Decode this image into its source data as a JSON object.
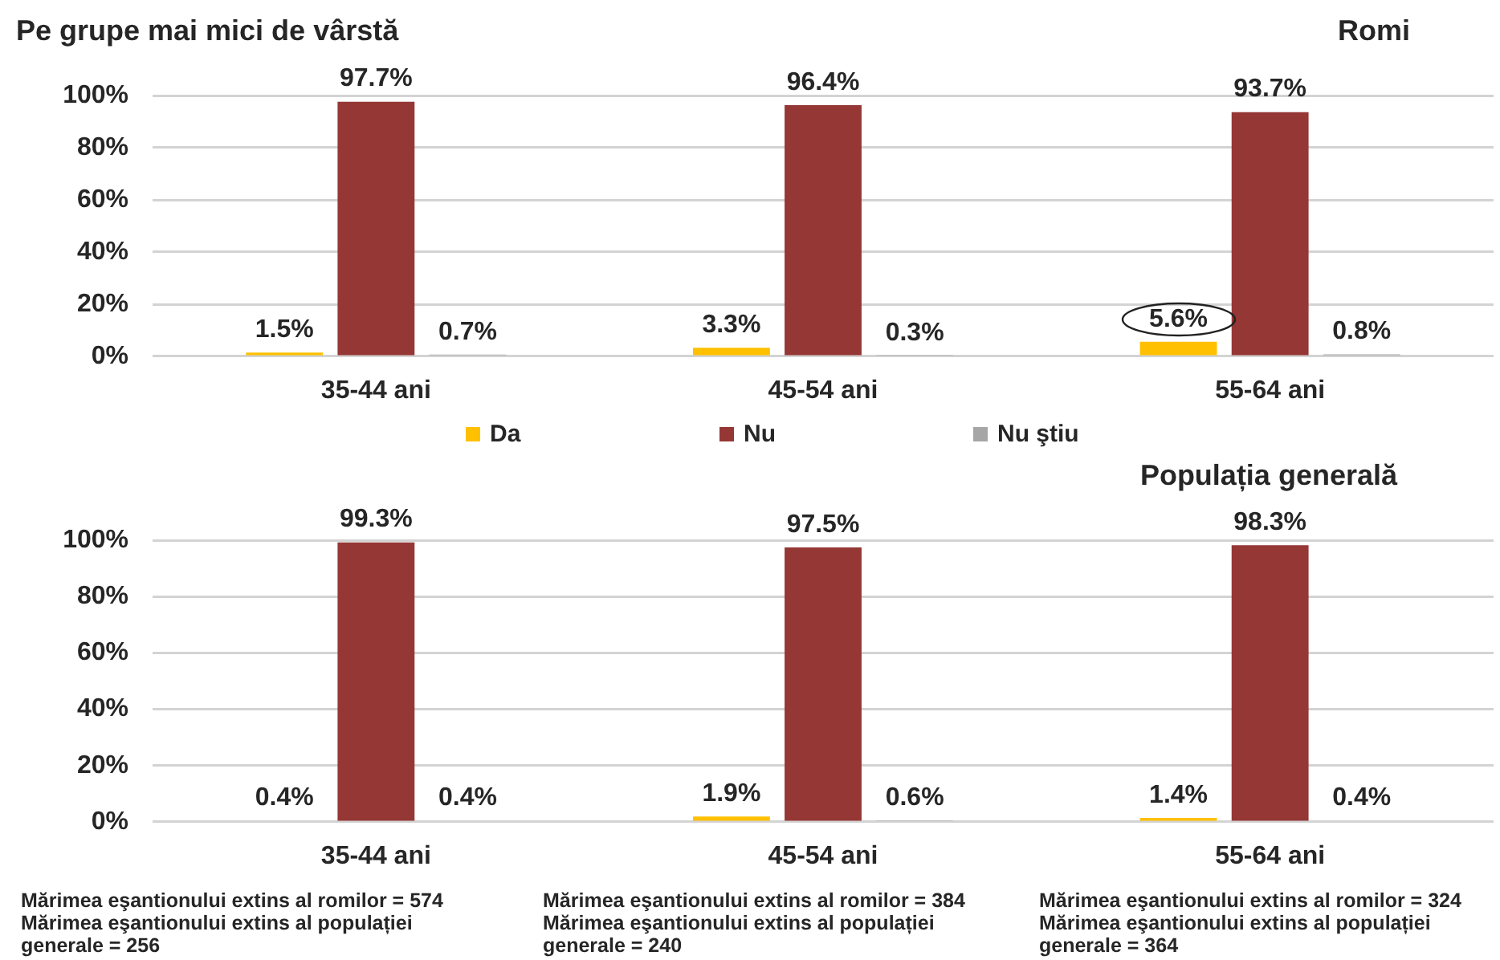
{
  "chart_data": [
    {
      "type": "bar",
      "title": "Pe grupe mai mici de vârstă",
      "subtitle": "Romi",
      "categories": [
        "35-44 ani",
        "45-54 ani",
        "55-64 ani"
      ],
      "series": [
        {
          "name": "Da",
          "color": "#ffc000",
          "values": [
            1.5,
            3.3,
            5.6
          ],
          "value_labels": [
            "1.5%",
            "3.3%",
            "5.6%"
          ]
        },
        {
          "name": "Nu",
          "color": "#953735",
          "values": [
            97.7,
            96.4,
            93.7
          ],
          "value_labels": [
            "97.7%",
            "96.4%",
            "93.7%"
          ]
        },
        {
          "name": "Nu ştiu",
          "color": "#a6a6a6",
          "values": [
            0.7,
            0.3,
            0.8
          ],
          "value_labels": [
            "0.7%",
            "0.3%",
            "0.8%"
          ]
        }
      ],
      "ylim": [
        0,
        100
      ],
      "yticks": [
        {
          "value": 0,
          "label": "0%"
        },
        {
          "value": 20,
          "label": "20%"
        },
        {
          "value": 40,
          "label": "40%"
        },
        {
          "value": 60,
          "label": "60%"
        },
        {
          "value": 80,
          "label": "80%"
        },
        {
          "value": 100,
          "label": "100%"
        }
      ],
      "grid": "y",
      "legend": "bottom"
    },
    {
      "type": "bar",
      "title": "Populația generală",
      "categories": [
        "35-44 ani",
        "45-54 ani",
        "55-64 ani"
      ],
      "series": [
        {
          "color": "#ffc000",
          "values": [
            0.4,
            1.9,
            1.4
          ],
          "value_labels": [
            "0.4%",
            "1.9%",
            "1.4%"
          ]
        },
        {
          "color": "#953735",
          "values": [
            99.3,
            97.5,
            98.3
          ],
          "value_labels": [
            "99.3%",
            "97.5%",
            "98.3%"
          ]
        },
        {
          "color": "#a6a6a6",
          "values": [
            0.4,
            0.6,
            0.4
          ],
          "value_labels": [
            "0.4%",
            "0.6%",
            "0.4%"
          ]
        }
      ],
      "ylim": [
        0,
        100
      ],
      "yticks": [
        {
          "value": 0,
          "label": "0%"
        },
        {
          "value": 20,
          "label": "20%"
        },
        {
          "value": 40,
          "label": "40%"
        },
        {
          "value": 60,
          "label": "60%"
        },
        {
          "value": 80,
          "label": "80%"
        },
        {
          "value": 100,
          "label": "100%"
        }
      ],
      "grid": "y",
      "annotations": [
        "Mărimea eşantionului extins al romilor = 574\nMărimea eşantionului extins al populației generale = 256",
        "Mărimea eşantionului extins al romilor = 384\nMărimea eşantionului extins al populației generale = 240",
        "Mărimea eşantionului extins al romilor = 324\nMărimea eşantionului extins al populației generale = 364"
      ]
    }
  ]
}
